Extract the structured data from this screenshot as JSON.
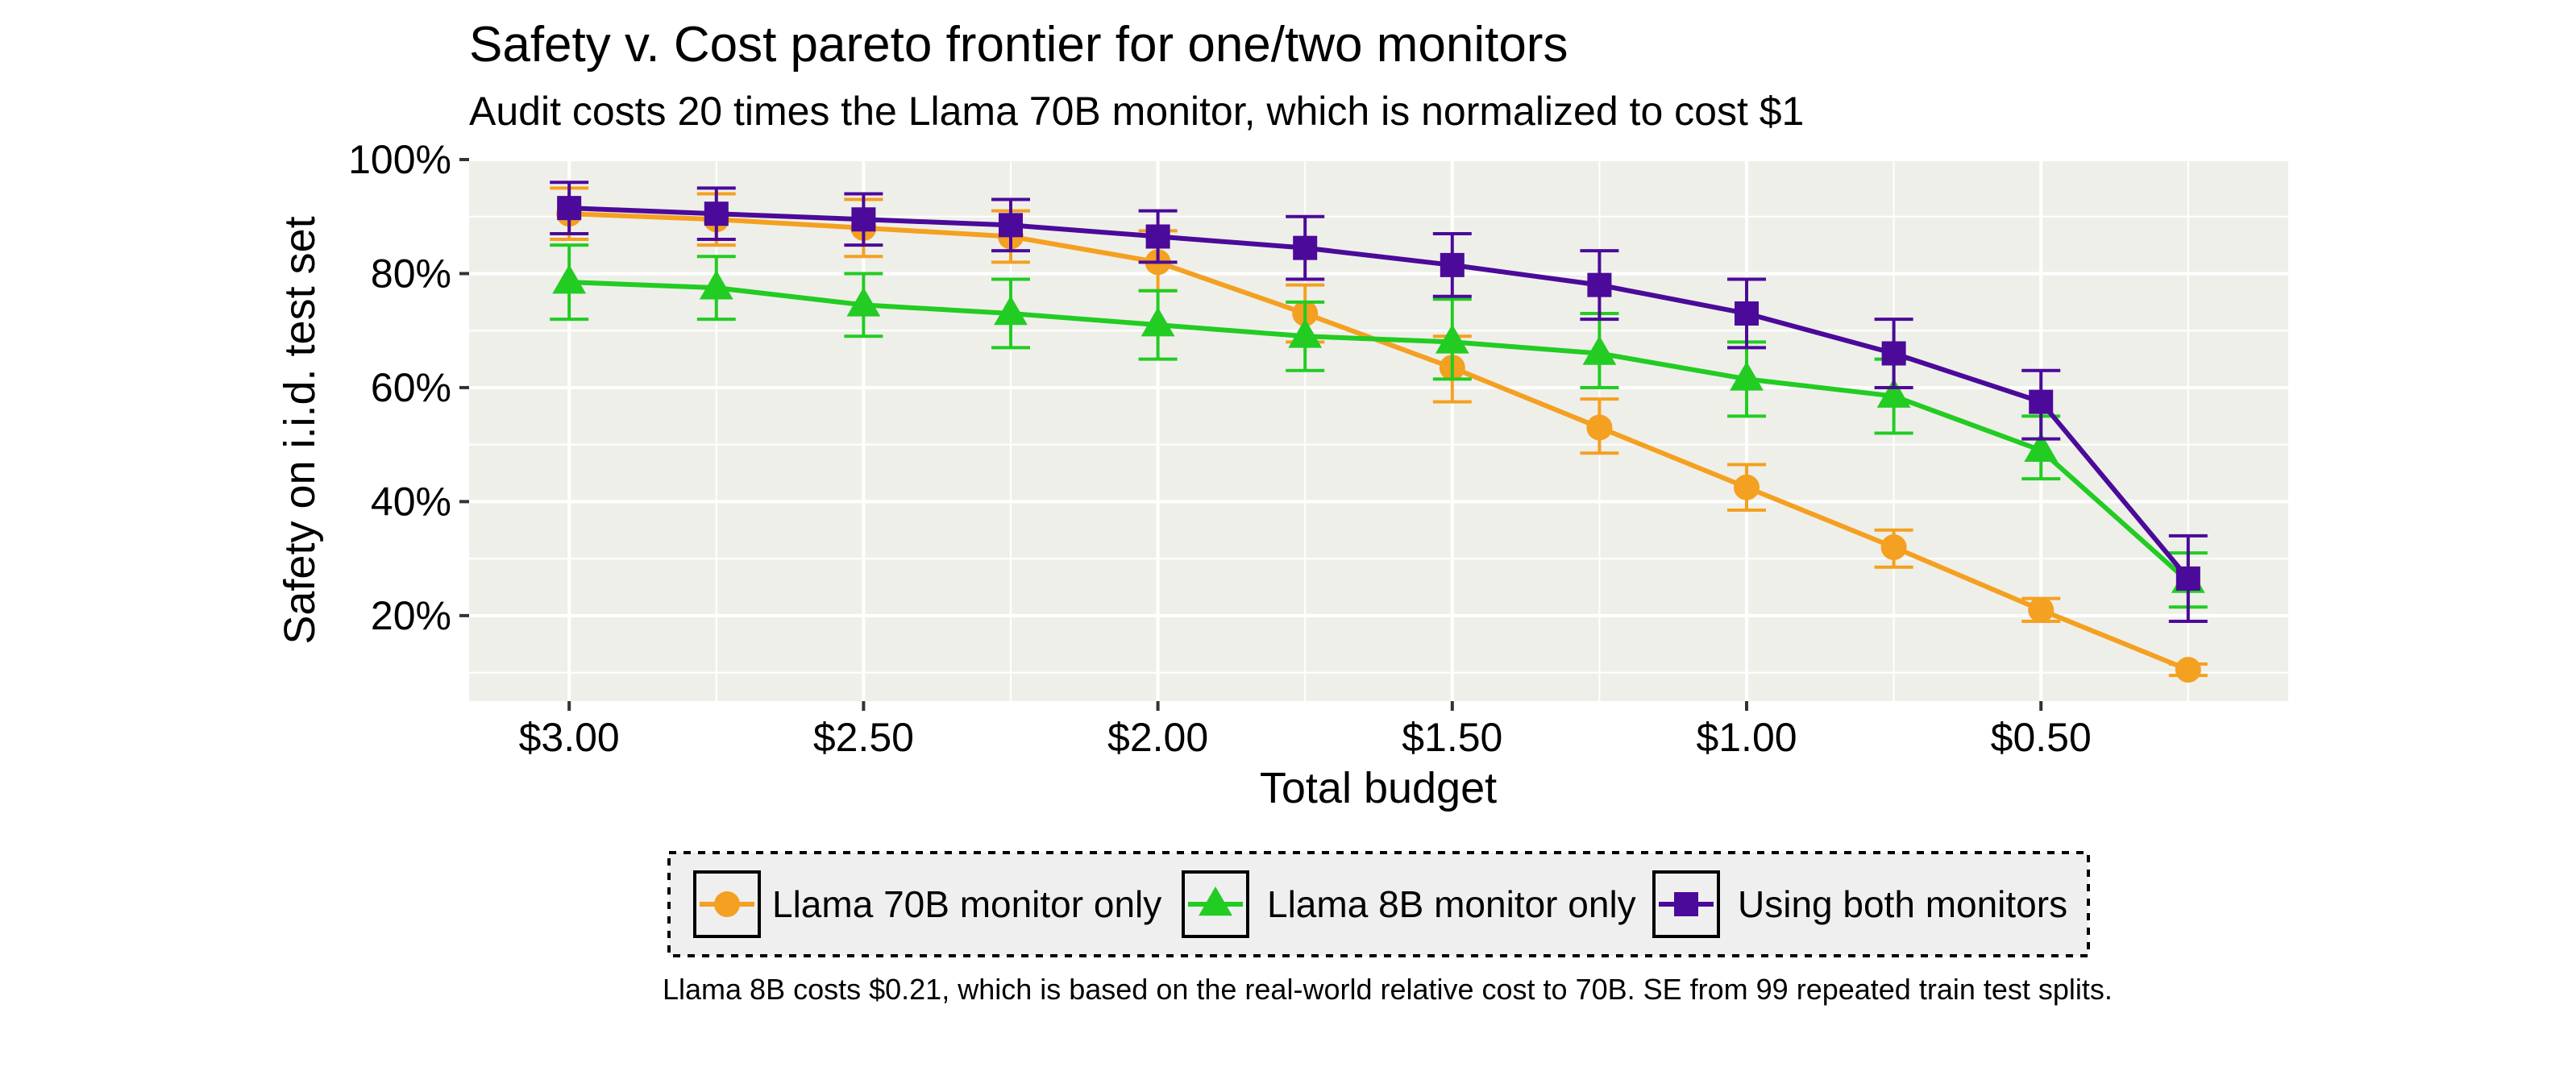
{
  "chart_data": {
    "type": "line",
    "title": "Safety v. Cost pareto frontier for one/two monitors",
    "subtitle": "Audit costs 20 times the Llama 70B monitor, which is normalized to cost $1",
    "xlabel": "Total budget",
    "ylabel": "Safety on i.i.d. test set",
    "x_reversed": true,
    "xlim": [
      0.08,
      3.17
    ],
    "ylim": [
      5,
      100
    ],
    "x_ticks": [
      3.0,
      2.5,
      2.0,
      1.5,
      1.0,
      0.5
    ],
    "x_tick_labels": [
      "$3.00",
      "$2.50",
      "$2.00",
      "$1.50",
      "$1.00",
      "$0.50"
    ],
    "y_ticks": [
      20,
      40,
      60,
      80,
      100
    ],
    "y_tick_labels": [
      "20%",
      "40%",
      "60%",
      "80%",
      "100%"
    ],
    "x": [
      3.0,
      2.75,
      2.5,
      2.25,
      2.0,
      1.75,
      1.5,
      1.25,
      1.0,
      0.75,
      0.5,
      0.25
    ],
    "series": [
      {
        "name": "Llama 70B monitor only",
        "color": "#F4A020",
        "marker": "circle",
        "values": [
          90.5,
          89.5,
          88,
          86.5,
          82,
          73,
          63.5,
          53,
          42.5,
          32,
          21,
          10.5
        ],
        "err_low": [
          86,
          85,
          83,
          82,
          77,
          68,
          57.5,
          48.5,
          38.5,
          28.5,
          19,
          9.5
        ],
        "err_high": [
          95,
          94,
          93,
          91,
          87.5,
          78,
          69,
          58,
          46.5,
          35,
          23,
          11.5
        ]
      },
      {
        "name": "Llama 8B monitor only",
        "color": "#22CC22",
        "marker": "triangle",
        "values": [
          78.5,
          77.5,
          74.5,
          73,
          71,
          69,
          68,
          66,
          61.5,
          58.5,
          49,
          26
        ],
        "err_low": [
          72,
          72,
          69,
          67,
          65,
          63,
          61.5,
          60,
          55,
          52,
          44,
          21.5
        ],
        "err_high": [
          85,
          83,
          80,
          79,
          77,
          75,
          75.5,
          73,
          68,
          65,
          55,
          31
        ]
      },
      {
        "name": "Using both monitors",
        "color": "#4B0A99",
        "marker": "square",
        "values": [
          91.5,
          90.5,
          89.5,
          88.5,
          86.5,
          84.5,
          81.5,
          78,
          73,
          66,
          57.5,
          26.5
        ],
        "err_low": [
          87,
          86,
          85,
          84,
          82,
          79,
          76,
          72,
          67,
          60,
          51,
          19
        ],
        "err_high": [
          96,
          95,
          94,
          93,
          91,
          90,
          87,
          84,
          79,
          72,
          63,
          34
        ]
      }
    ],
    "legend_position": "bottom",
    "caption": "Llama 8B costs $0.21, which is based on the real-world relative cost to 70B. SE from 99 repeated train test splits.",
    "panel_background": "#EFEFEA",
    "grid_color": "#FFFFFF",
    "grid": true
  }
}
